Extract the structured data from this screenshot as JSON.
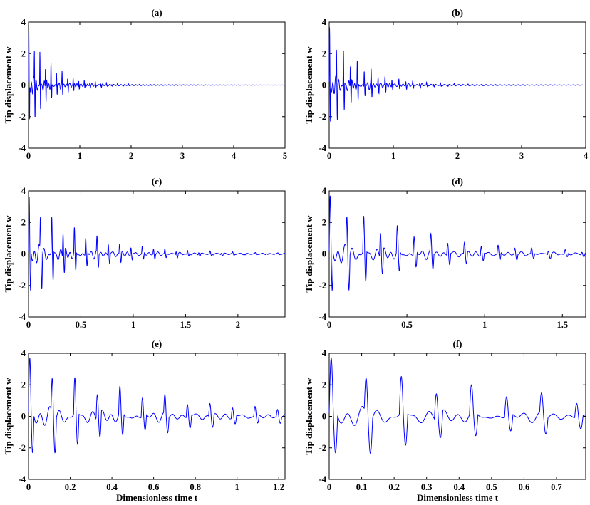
{
  "chart_data": [
    {
      "type": "line",
      "title": "(a)",
      "ylabel": "Tip displacement w",
      "xlabel": "",
      "xlim": [
        0,
        5
      ],
      "ylim": [
        -4,
        4
      ],
      "xticks": [
        "0",
        "1",
        "2",
        "3",
        "4",
        "5"
      ],
      "yticks": [
        "-4",
        "-2",
        "0",
        "2",
        "4"
      ],
      "series": [
        {
          "color": "#0000ff",
          "impulse_period": 0.108,
          "impulse_peak": 3.15,
          "impulse_trough": -2.8,
          "decay_time_constant": 0.45,
          "final_time": 5
        }
      ]
    },
    {
      "type": "line",
      "title": "(b)",
      "ylabel": "Tip displacement w",
      "xlabel": "",
      "xlim": [
        0,
        4
      ],
      "ylim": [
        -4,
        4
      ],
      "xticks": [
        "0",
        "1",
        "2",
        "3",
        "4"
      ],
      "yticks": [
        "-4",
        "-2",
        "0",
        "2",
        "4"
      ],
      "series": [
        {
          "color": "#0000ff",
          "impulse_period": 0.108,
          "impulse_peak": 3.15,
          "impulse_trough": -2.8,
          "decay_time_constant": 0.5,
          "final_time": 3.95
        }
      ]
    },
    {
      "type": "line",
      "title": "(c)",
      "ylabel": "Tip displacement w",
      "xlabel": "",
      "xlim": [
        0,
        2.45
      ],
      "ylim": [
        -4,
        4
      ],
      "xticks": [
        "0",
        "0.5",
        "1",
        "1.5",
        "2"
      ],
      "yticks": [
        "-4",
        "-2",
        "0",
        "2",
        "4"
      ],
      "series": [
        {
          "color": "#0000ff",
          "impulse_period": 0.108,
          "impulse_peak": 3.15,
          "impulse_trough": -2.8,
          "decay_time_constant": 0.55,
          "final_time": 2.45
        }
      ]
    },
    {
      "type": "line",
      "title": "(d)",
      "ylabel": "Tip displacement w",
      "xlabel": "",
      "xlim": [
        0,
        1.65
      ],
      "ylim": [
        -4,
        4
      ],
      "xticks": [
        "0",
        "0.5",
        "1",
        "1.5"
      ],
      "yticks": [
        "-4",
        "-2",
        "0",
        "2",
        "4"
      ],
      "series": [
        {
          "color": "#0000ff",
          "impulse_period": 0.108,
          "impulse_peak": 3.15,
          "impulse_trough": -2.8,
          "decay_time_constant": 0.6,
          "final_time": 1.65
        }
      ]
    },
    {
      "type": "line",
      "title": "(e)",
      "ylabel": "Tip displacement w",
      "xlabel": "Dimensionless time t",
      "xlim": [
        0,
        1.23
      ],
      "ylim": [
        -4,
        4
      ],
      "xticks": [
        "0",
        "0.2",
        "0.4",
        "0.6",
        "0.8",
        "1",
        "1.2"
      ],
      "yticks": [
        "-4",
        "-2",
        "0",
        "2",
        "4"
      ],
      "series": [
        {
          "color": "#0000ff",
          "impulse_period": 0.108,
          "impulse_peak": 3.15,
          "impulse_trough": -2.8,
          "decay_time_constant": 0.65,
          "final_time": 1.23
        }
      ]
    },
    {
      "type": "line",
      "title": "(f)",
      "ylabel": "Tip displacement w",
      "xlabel": "Dimensionless time t",
      "xlim": [
        0,
        0.79
      ],
      "ylim": [
        -4,
        4
      ],
      "xticks": [
        "0",
        "0.1",
        "0.2",
        "0.3",
        "0.4",
        "0.5",
        "0.6",
        "0.7"
      ],
      "yticks": [
        "-4",
        "-2",
        "0",
        "2",
        "4"
      ],
      "series": [
        {
          "color": "#0000ff",
          "impulse_period": 0.108,
          "impulse_peak": 3.15,
          "impulse_trough": -2.8,
          "decay_time_constant": 0.7,
          "final_time": 0.79
        }
      ]
    }
  ]
}
